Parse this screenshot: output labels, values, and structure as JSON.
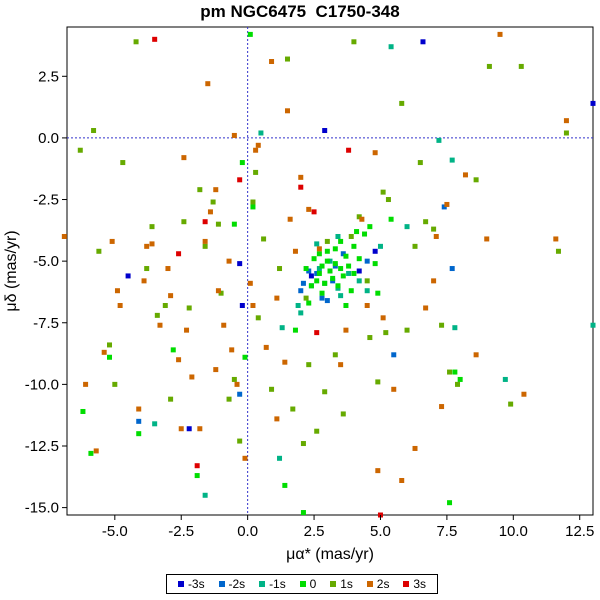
{
  "chart_data": {
    "type": "scatter",
    "title": "pm NGC6475  C1750-348",
    "xlabel": "μα* (mas/yr)",
    "ylabel": "μδ (mas/yr)",
    "xlim": [
      -6.8,
      13.0
    ],
    "ylim": [
      -15.3,
      4.5
    ],
    "x_ticks": [
      -5.0,
      -2.5,
      0.0,
      2.5,
      5.0,
      7.5,
      10.0,
      12.5
    ],
    "x_tick_labels": [
      "-5.0",
      "-2.5",
      "0.0",
      "2.5",
      "5.0",
      "7.5",
      "10.0",
      "12.5"
    ],
    "y_ticks": [
      2.5,
      0.0,
      -2.5,
      -5.0,
      -7.5,
      -10.0,
      -12.5,
      -15.0
    ],
    "y_tick_labels": [
      "2.5",
      "0.0",
      "-2.5",
      "-5.0",
      "-7.5",
      "-10.0",
      "-12.5",
      "-15.0"
    ],
    "reference_lines": {
      "x": 0.0,
      "y": 0.0,
      "style": "dashed",
      "color": "#3333cc"
    },
    "legend_position": "bottom-center",
    "series": [
      {
        "name": "-3s",
        "color": "#0000cc",
        "points": [
          [
            -4.5,
            -5.6
          ],
          [
            -0.3,
            -5.1
          ],
          [
            -0.2,
            -6.8
          ],
          [
            -2.2,
            -11.8
          ],
          [
            2.9,
            0.3
          ],
          [
            6.6,
            3.9
          ],
          [
            13.0,
            1.4
          ],
          [
            4.2,
            -5.4
          ],
          [
            4.8,
            -4.6
          ],
          [
            2.4,
            -5.6
          ]
        ]
      },
      {
        "name": "-2s",
        "color": "#0066cc",
        "points": [
          [
            -4.1,
            -11.5
          ],
          [
            2.0,
            -6.2
          ],
          [
            2.8,
            -6.5
          ],
          [
            3.0,
            -6.6
          ],
          [
            3.2,
            -5.8
          ],
          [
            -0.3,
            -10.4
          ],
          [
            5.5,
            -8.8
          ],
          [
            7.7,
            -5.3
          ],
          [
            7.4,
            -2.8
          ],
          [
            2.3,
            -5.4
          ],
          [
            3.6,
            -4.7
          ],
          [
            4.5,
            -5.0
          ],
          [
            2.6,
            -5.5
          ],
          [
            3.3,
            -5.2
          ],
          [
            2.1,
            -5.9
          ]
        ]
      },
      {
        "name": "-1s",
        "color": "#00b386",
        "points": [
          [
            -3.5,
            -11.6
          ],
          [
            -1.6,
            -14.5
          ],
          [
            0.5,
            0.2
          ],
          [
            1.2,
            -13.0
          ],
          [
            1.3,
            -7.7
          ],
          [
            1.9,
            -6.8
          ],
          [
            2.0,
            -7.1
          ],
          [
            4.5,
            -6.2
          ],
          [
            5.4,
            3.7
          ],
          [
            7.2,
            -0.1
          ],
          [
            7.7,
            -0.9
          ],
          [
            7.8,
            -7.7
          ],
          [
            9.7,
            -9.8
          ],
          [
            13.0,
            -7.6
          ],
          [
            5.0,
            -4.4
          ],
          [
            2.4,
            -6.0
          ],
          [
            2.9,
            -5.9
          ],
          [
            3.4,
            -6.1
          ],
          [
            3.8,
            -5.5
          ],
          [
            4.2,
            -5.8
          ],
          [
            3.1,
            -5.0
          ],
          [
            2.7,
            -5.3
          ],
          [
            3.5,
            -6.4
          ],
          [
            6.0,
            -3.6
          ],
          [
            2.6,
            -4.3
          ],
          [
            3.4,
            -4.0
          ]
        ]
      },
      {
        "name": "0",
        "color": "#00dd00",
        "points": [
          [
            -6.2,
            -11.1
          ],
          [
            -5.9,
            -12.8
          ],
          [
            -5.2,
            -8.9
          ],
          [
            -4.1,
            -12.0
          ],
          [
            -2.8,
            -8.6
          ],
          [
            -1.9,
            -13.7
          ],
          [
            -0.1,
            -8.9
          ],
          [
            0.1,
            4.2
          ],
          [
            1.4,
            -14.1
          ],
          [
            1.8,
            -7.8
          ],
          [
            2.1,
            -15.2
          ],
          [
            2.3,
            -6.7
          ],
          [
            2.4,
            -6.0
          ],
          [
            2.6,
            -5.8
          ],
          [
            2.7,
            -5.5
          ],
          [
            2.8,
            -5.2
          ],
          [
            2.9,
            -5.9
          ],
          [
            3.0,
            -5.0
          ],
          [
            3.1,
            -5.4
          ],
          [
            3.2,
            -5.7
          ],
          [
            3.3,
            -5.1
          ],
          [
            3.4,
            -6.0
          ],
          [
            3.5,
            -5.3
          ],
          [
            3.6,
            -5.6
          ],
          [
            3.7,
            -4.8
          ],
          [
            3.8,
            -5.2
          ],
          [
            3.9,
            -6.2
          ],
          [
            4.0,
            -5.5
          ],
          [
            4.2,
            -4.9
          ],
          [
            4.4,
            -3.9
          ],
          [
            4.6,
            -3.6
          ],
          [
            4.9,
            -6.3
          ],
          [
            5.4,
            -3.3
          ],
          [
            7.6,
            -14.8
          ],
          [
            7.8,
            -9.5
          ],
          [
            8.0,
            -9.8
          ],
          [
            2.5,
            -4.9
          ],
          [
            2.8,
            -6.3
          ],
          [
            3.0,
            -4.6
          ],
          [
            3.5,
            -4.2
          ],
          [
            4.1,
            -3.8
          ],
          [
            -0.2,
            -1.0
          ],
          [
            0.2,
            -2.8
          ],
          [
            3.7,
            -6.8
          ],
          [
            4.8,
            -5.1
          ],
          [
            -0.5,
            -3.5
          ],
          [
            2.2,
            -5.3
          ],
          [
            3.3,
            -4.5
          ],
          [
            4.0,
            -4.4
          ],
          [
            2.7,
            -4.7
          ]
        ]
      },
      {
        "name": "1s",
        "color": "#66aa00",
        "points": [
          [
            -6.3,
            -0.5
          ],
          [
            -5.6,
            -4.6
          ],
          [
            -5.2,
            -8.4
          ],
          [
            -5.0,
            -10.0
          ],
          [
            -4.2,
            3.9
          ],
          [
            -3.8,
            -5.3
          ],
          [
            -3.6,
            -3.6
          ],
          [
            -3.4,
            -7.2
          ],
          [
            -3.1,
            -6.8
          ],
          [
            -2.9,
            -10.6
          ],
          [
            -2.4,
            -3.4
          ],
          [
            -2.2,
            -6.9
          ],
          [
            -1.8,
            -2.1
          ],
          [
            -1.6,
            -4.4
          ],
          [
            -1.3,
            -2.6
          ],
          [
            -1.1,
            -3.5
          ],
          [
            -0.7,
            -10.6
          ],
          [
            -0.5,
            -9.8
          ],
          [
            -0.3,
            -12.3
          ],
          [
            0.2,
            -2.6
          ],
          [
            0.4,
            -7.3
          ],
          [
            0.6,
            -4.1
          ],
          [
            0.9,
            -10.2
          ],
          [
            1.2,
            -5.3
          ],
          [
            1.7,
            -11.0
          ],
          [
            2.1,
            -12.4
          ],
          [
            2.3,
            -9.2
          ],
          [
            2.6,
            -11.9
          ],
          [
            2.9,
            -10.3
          ],
          [
            3.3,
            -8.8
          ],
          [
            3.6,
            -11.2
          ],
          [
            3.9,
            -4.0
          ],
          [
            4.0,
            3.9
          ],
          [
            4.2,
            -3.2
          ],
          [
            4.6,
            -8.1
          ],
          [
            4.9,
            -9.9
          ],
          [
            5.2,
            -7.9
          ],
          [
            5.8,
            1.4
          ],
          [
            6.0,
            -7.8
          ],
          [
            6.3,
            -4.4
          ],
          [
            6.5,
            -1.0
          ],
          [
            6.7,
            -3.4
          ],
          [
            7.3,
            -7.6
          ],
          [
            7.6,
            -9.5
          ],
          [
            7.9,
            -10.0
          ],
          [
            8.6,
            -1.7
          ],
          [
            9.1,
            2.9
          ],
          [
            9.9,
            -10.8
          ],
          [
            10.3,
            2.9
          ],
          [
            11.7,
            -4.6
          ],
          [
            12.0,
            0.2
          ],
          [
            -5.8,
            0.3
          ],
          [
            -4.7,
            -1.0
          ],
          [
            -1.0,
            -6.3
          ],
          [
            1.5,
            3.2
          ],
          [
            5.3,
            -2.5
          ],
          [
            7.0,
            -3.7
          ],
          [
            0.3,
            -1.4
          ],
          [
            4.5,
            -5.8
          ],
          [
            3.0,
            -4.2
          ],
          [
            5.1,
            -2.2
          ],
          [
            2.2,
            -6.5
          ]
        ]
      },
      {
        "name": "2s",
        "color": "#cc6600",
        "points": [
          [
            -6.9,
            -4.0
          ],
          [
            -6.1,
            -10.0
          ],
          [
            -5.7,
            -12.7
          ],
          [
            -5.4,
            -8.7
          ],
          [
            -5.1,
            -4.2
          ],
          [
            -4.9,
            -6.2
          ],
          [
            -4.8,
            -6.8
          ],
          [
            -4.1,
            -11.0
          ],
          [
            -3.9,
            -5.8
          ],
          [
            -3.6,
            -4.3
          ],
          [
            -3.3,
            -7.6
          ],
          [
            -3.0,
            -5.3
          ],
          [
            -2.9,
            -6.4
          ],
          [
            -2.6,
            -9.0
          ],
          [
            -2.5,
            -11.8
          ],
          [
            -2.3,
            -7.8
          ],
          [
            -2.1,
            -9.7
          ],
          [
            -1.8,
            -11.8
          ],
          [
            -1.6,
            -4.2
          ],
          [
            -1.4,
            -3.0
          ],
          [
            -1.2,
            -9.4
          ],
          [
            -1.1,
            -6.2
          ],
          [
            -0.9,
            -7.6
          ],
          [
            -0.7,
            -5.0
          ],
          [
            -0.6,
            -8.6
          ],
          [
            -0.4,
            -10.0
          ],
          [
            -0.1,
            -13.0
          ],
          [
            0.2,
            -6.8
          ],
          [
            0.4,
            -0.3
          ],
          [
            0.7,
            -8.5
          ],
          [
            1.1,
            -11.4
          ],
          [
            1.6,
            -3.3
          ],
          [
            1.8,
            -4.6
          ],
          [
            1.5,
            1.1
          ],
          [
            2.0,
            -1.6
          ],
          [
            2.3,
            -2.9
          ],
          [
            3.5,
            -9.2
          ],
          [
            4.3,
            -3.3
          ],
          [
            4.5,
            -6.8
          ],
          [
            4.9,
            -13.5
          ],
          [
            5.1,
            -7.3
          ],
          [
            5.5,
            -10.2
          ],
          [
            5.8,
            -13.9
          ],
          [
            6.3,
            -12.6
          ],
          [
            6.7,
            -6.9
          ],
          [
            7.1,
            -4.0
          ],
          [
            7.3,
            -10.9
          ],
          [
            7.5,
            -2.7
          ],
          [
            8.2,
            -1.5
          ],
          [
            8.6,
            -8.8
          ],
          [
            9.0,
            -4.1
          ],
          [
            9.5,
            4.2
          ],
          [
            10.4,
            -10.4
          ],
          [
            11.6,
            -4.1
          ],
          [
            12.0,
            0.7
          ],
          [
            -2.4,
            -0.8
          ],
          [
            -0.5,
            0.1
          ],
          [
            0.1,
            -5.9
          ],
          [
            3.7,
            -7.8
          ],
          [
            2.7,
            -4.5
          ],
          [
            0.9,
            3.1
          ],
          [
            1.4,
            -9.1
          ],
          [
            7.0,
            -5.8
          ],
          [
            -3.8,
            -4.4
          ],
          [
            1.1,
            -6.5
          ],
          [
            -1.5,
            2.2
          ],
          [
            0.3,
            -0.5
          ],
          [
            -1.2,
            -2.1
          ],
          [
            4.8,
            -0.6
          ]
        ]
      },
      {
        "name": "3s",
        "color": "#dd0000",
        "points": [
          [
            -3.5,
            4.0
          ],
          [
            -2.6,
            -4.7
          ],
          [
            -1.6,
            -3.4
          ],
          [
            -1.9,
            -13.3
          ],
          [
            -0.3,
            -1.7
          ],
          [
            2.0,
            -2.0
          ],
          [
            2.5,
            -3.0
          ],
          [
            3.8,
            -0.5
          ],
          [
            2.6,
            -7.9
          ],
          [
            5.0,
            -15.3
          ]
        ]
      }
    ]
  }
}
